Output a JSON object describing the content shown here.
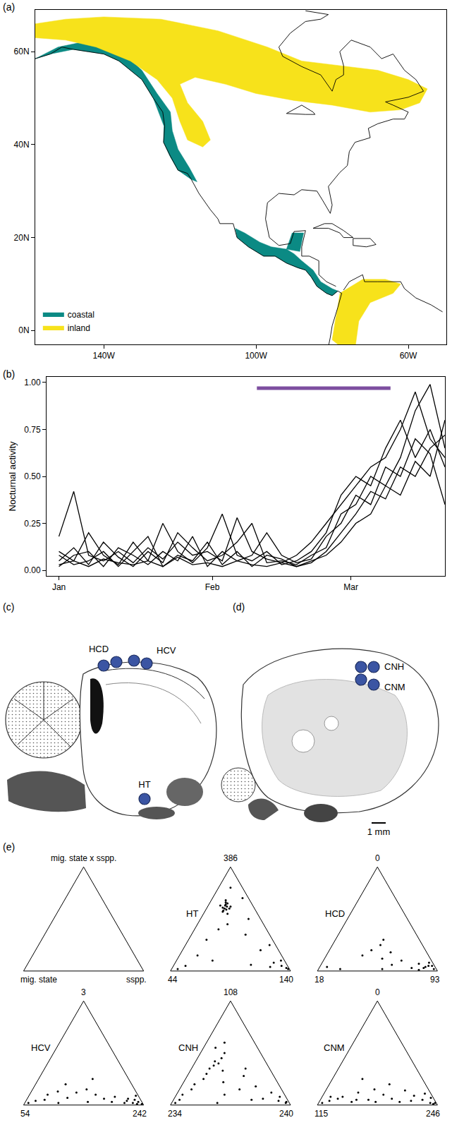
{
  "panel_labels": [
    "(a)",
    "(b)",
    "(c)",
    "(d)",
    "(e)"
  ],
  "chart_data": [
    {
      "type": "map",
      "series": [
        {
          "name": "coastal",
          "color": "#0b8a84",
          "lon": [
            -158,
            -152,
            -146,
            -140,
            -134,
            -130,
            -126,
            -122.5,
            -122,
            -120.5,
            -117.5,
            -115.5,
            -117,
            -120.5,
            -122.6,
            -124.3,
            -124.2,
            -127,
            -130,
            -133,
            -136,
            -140,
            -148,
            -154,
            -158,
            null,
            -105,
            -102,
            -98,
            -95,
            -92,
            -89,
            -87,
            -85.5,
            -84,
            -81.5,
            -80,
            -78.5,
            -80,
            -83,
            -85,
            -88,
            -90,
            -92,
            -96,
            -99,
            -103,
            -105.5,
            null,
            -92,
            -88.5,
            -87.5,
            -90.5,
            -92
          ],
          "lat": [
            58.5,
            61,
            62,
            61.3,
            59,
            56,
            51,
            47,
            43,
            39,
            35,
            32,
            32.5,
            34.5,
            37.5,
            40.5,
            44,
            50,
            54,
            56,
            58,
            59.5,
            60.5,
            59.5,
            58.5,
            null,
            20,
            18,
            16,
            16,
            14.5,
            13.5,
            13,
            11.5,
            9.5,
            8,
            7.5,
            8.5,
            9,
            10.5,
            13,
            15,
            16.5,
            17.5,
            18,
            19,
            21,
            22,
            null,
            17.5,
            17,
            21,
            21,
            17.5
          ]
        },
        {
          "name": "inland",
          "color": "#f7e21b",
          "lon": [
            -158,
            -150,
            -140,
            -125,
            -110,
            -97,
            -88,
            -78,
            -68,
            -60,
            -55,
            -57,
            -62,
            -70,
            -80,
            -90,
            -100,
            -108,
            -116,
            -120,
            -118,
            -114,
            -112,
            -114,
            -118,
            -120,
            -122,
            -126,
            -133,
            -142,
            -150,
            -158,
            null,
            -78,
            -72,
            -66,
            -62,
            -64,
            -70,
            -73,
            -74,
            -77,
            -80,
            -79
          ],
          "lat": [
            66,
            67,
            67.5,
            67,
            64.5,
            61,
            58,
            57,
            56,
            54,
            52,
            49,
            47.5,
            47,
            48.5,
            49.5,
            51,
            53,
            54.5,
            53,
            49,
            45,
            41,
            39.5,
            41,
            45,
            50,
            54,
            58,
            61,
            62.5,
            63,
            null,
            8,
            11,
            11,
            10,
            8,
            6,
            2,
            -4,
            -4,
            -2,
            3
          ]
        }
      ],
      "coastline": {
        "color": "#000000",
        "lon": [
          -158,
          -154,
          -151,
          -148,
          -144,
          -140,
          -136,
          -133,
          -130,
          -127,
          -124.5,
          -124,
          -124.3,
          -122.5,
          -120.5,
          -118,
          -117,
          -115,
          -112,
          -110,
          -109.5,
          -106,
          -105,
          -102,
          -98,
          -95,
          -92,
          -89,
          -87,
          -85.5,
          -84,
          -81.5,
          -80,
          -78.5,
          -77.5,
          -78.5,
          -80,
          -80.5,
          -81,
          null,
          -77,
          -75.5,
          -72,
          -71.5,
          -68,
          -62,
          -61,
          -58,
          -54,
          -51,
          null,
          -79,
          -81.5,
          -83.5,
          -83.5,
          -86,
          -88,
          -88,
          -87,
          -90,
          -91,
          -94,
          -96.5,
          -97.5,
          -97,
          -94,
          -90,
          -88,
          -84,
          -82.5,
          -81,
          -80.5,
          -80,
          -81,
          -78,
          -76,
          -75.5,
          -74,
          -70,
          -70.5,
          -68,
          -66,
          -64,
          -61,
          -60,
          -64,
          -66,
          -60,
          -56,
          -58,
          -61,
          -64,
          -67,
          -70,
          -75,
          -78,
          -77,
          -77,
          -79,
          -80,
          -83,
          -88,
          -93,
          -94,
          -91,
          -87,
          -83,
          -81,
          -87,
          null,
          -85,
          -82,
          -80,
          -77,
          -74.5,
          -77,
          -78,
          -81,
          -85,
          null,
          -74.5,
          -70,
          -68.5,
          -71,
          -74.5,
          -74.5,
          null,
          -92,
          -88,
          -85,
          -84.5,
          -87,
          -92
        ],
        "lat": [
          58.5,
          59.5,
          61,
          60.5,
          60,
          59.5,
          58,
          56,
          54,
          50,
          47,
          44,
          40.5,
          37.5,
          34.5,
          33.8,
          32.5,
          29.5,
          26,
          24,
          23,
          23,
          20,
          18,
          16,
          16,
          14.5,
          13.5,
          13,
          11.5,
          9.5,
          8,
          7.5,
          8.5,
          8,
          5,
          1,
          -1.5,
          -3.5,
          null,
          8.7,
          10.5,
          12,
          10.5,
          10.5,
          10.5,
          9,
          7,
          5.5,
          4,
          null,
          9.5,
          10.5,
          12,
          15,
          16,
          16,
          18,
          21.5,
          21.3,
          18.7,
          18.3,
          20,
          24,
          27.5,
          29.5,
          29.2,
          30.3,
          30,
          28,
          26,
          25.2,
          27,
          31,
          34,
          35.5,
          38.5,
          40.5,
          41.5,
          43.5,
          44.5,
          45,
          45.5,
          45.5,
          47,
          48.5,
          49.2,
          50.2,
          51.5,
          54,
          56,
          59.5,
          58.5,
          61,
          62.5,
          60,
          57,
          55,
          54,
          51.5,
          55,
          56.8,
          59,
          61,
          64,
          66.5,
          67,
          68,
          68.8,
          null,
          22,
          23,
          23,
          21.5,
          20,
          20,
          21,
          22,
          22,
          null,
          19.8,
          19.8,
          18.5,
          18,
          18.3,
          19.8,
          null,
          46.7,
          48.5,
          47,
          46.5,
          46.5,
          46.7
        ]
      },
      "xlim": [
        -158,
        -50
      ],
      "ylim": [
        -3,
        69
      ],
      "xticks": [
        {
          "value": -140,
          "label": "140W"
        },
        {
          "value": -100,
          "label": "100W"
        },
        {
          "value": -60,
          "label": "60W"
        }
      ],
      "yticks": [
        {
          "value": 0,
          "label": "0N"
        },
        {
          "value": 20,
          "label": "20N"
        },
        {
          "value": 40,
          "label": "40N"
        },
        {
          "value": 60,
          "label": "60N"
        }
      ],
      "legend": "bottom left"
    },
    {
      "type": "line",
      "ylabel": "Nocturnal activity",
      "x": [
        1,
        4,
        7,
        10,
        13,
        16,
        19,
        22,
        25,
        28,
        31,
        34,
        37,
        40,
        43,
        46,
        49,
        52,
        55,
        58,
        61,
        64,
        67,
        70,
        73,
        76,
        79
      ],
      "series": [
        {
          "color": "#000000",
          "values": [
            0.18,
            0.42,
            0.08,
            0.05,
            0.1,
            0.04,
            0.12,
            0.06,
            0.15,
            0.08,
            0.1,
            0.05,
            0.28,
            0.1,
            0.06,
            0.04,
            0.08,
            0.15,
            0.25,
            0.35,
            0.45,
            0.55,
            0.6,
            0.75,
            0.95,
            0.7,
            0.6
          ]
        },
        {
          "color": "#000000",
          "values": [
            0.1,
            0.05,
            0.2,
            0.08,
            0.03,
            0.15,
            0.05,
            0.25,
            0.1,
            0.04,
            0.12,
            0.3,
            0.08,
            0.05,
            0.1,
            0.03,
            0.05,
            0.1,
            0.2,
            0.4,
            0.5,
            0.45,
            0.65,
            0.8,
            0.6,
            0.75,
            0.55
          ]
        },
        {
          "color": "#000000",
          "values": [
            0.05,
            0.12,
            0.03,
            0.15,
            0.07,
            0.02,
            0.1,
            0.04,
            0.2,
            0.12,
            0.05,
            0.08,
            0.15,
            0.25,
            0.04,
            0.05,
            0.03,
            0.08,
            0.12,
            0.3,
            0.35,
            0.5,
            0.45,
            0.6,
            0.85,
            0.99,
            0.65
          ]
        },
        {
          "color": "#000000",
          "values": [
            0.02,
            0.08,
            0.1,
            0.02,
            0.12,
            0.08,
            0.03,
            0.1,
            0.05,
            0.18,
            0.02,
            0.1,
            0.05,
            0.08,
            0.2,
            0.08,
            0.04,
            0.06,
            0.18,
            0.25,
            0.4,
            0.35,
            0.55,
            0.5,
            0.7,
            0.62,
            0.35
          ]
        },
        {
          "color": "#000000",
          "values": [
            0.08,
            0.03,
            0.05,
            0.1,
            0.02,
            0.1,
            0.18,
            0.02,
            0.08,
            0.05,
            0.15,
            0.03,
            0.1,
            0.02,
            0.08,
            0.06,
            0.02,
            0.04,
            0.1,
            0.2,
            0.3,
            0.42,
            0.38,
            0.55,
            0.5,
            0.65,
            0.72
          ]
        },
        {
          "color": "#000000",
          "values": [
            0.03,
            0.05,
            0.02,
            0.06,
            0.04,
            0.03,
            0.05,
            0.02,
            0.07,
            0.03,
            0.04,
            0.02,
            0.05,
            0.03,
            0.02,
            0.04,
            0.02,
            0.05,
            0.08,
            0.15,
            0.25,
            0.3,
            0.45,
            0.4,
            0.58,
            0.5,
            0.8
          ]
        }
      ],
      "period_bar": {
        "x0": 41,
        "x1": 68,
        "y": 0.97,
        "color": "#7d4e9f"
      },
      "xlim": [
        -1.5,
        79
      ],
      "ylim": [
        -0.03,
        1.03
      ],
      "xticks": [
        {
          "value": 1,
          "label": "Jan"
        },
        {
          "value": 32,
          "label": "Feb"
        },
        {
          "value": 60,
          "label": "Mar"
        }
      ],
      "yticks": [
        {
          "value": 0,
          "label": "0.00"
        },
        {
          "value": 0.25,
          "label": "0.25"
        },
        {
          "value": 0.5,
          "label": "0.50"
        },
        {
          "value": 0.75,
          "label": "0.75"
        },
        {
          "value": 1,
          "label": "1.00"
        }
      ]
    },
    {
      "type": "ternary",
      "marker": "circle",
      "color": "#000000",
      "panels": [
        {
          "corner_labels": {
            "top": "mig. state x sspp.",
            "left": "mig. state",
            "right": "sspp."
          }
        },
        {
          "name": "HT",
          "corner_labels": {
            "top": 386,
            "left": 44,
            "right": 140
          },
          "a": [
            0.62,
            0.6,
            0.65,
            0.58,
            0.63,
            0.61,
            0.66,
            0.59,
            0.64,
            0.57,
            0.62,
            0.68,
            0.55,
            0.6,
            0.63,
            0.45,
            0.35,
            0.8,
            0.3,
            0.2,
            0.4,
            0.5,
            0.05,
            0.03,
            0.08,
            0.02,
            0.1,
            0.04,
            0.06,
            0.02,
            0.05,
            0.15,
            0.25,
            0.1,
            0.7
          ],
          "b": [
            0.22,
            0.25,
            0.2,
            0.27,
            0.23,
            0.26,
            0.21,
            0.24,
            0.22,
            0.28,
            0.19,
            0.2,
            0.25,
            0.21,
            0.27,
            0.3,
            0.2,
            0.1,
            0.55,
            0.15,
            0.4,
            0.1,
            0.05,
            0.02,
            0.1,
            0.01,
            0.03,
            0.15,
            0.3,
            0.93,
            0.85,
            0.7,
            0.05,
            0.6,
            0.05
          ]
        },
        {
          "name": "HCD",
          "corner_labels": {
            "top": 0,
            "left": 18,
            "right": 93
          },
          "a": [
            0.02,
            0.05,
            0.03,
            0.08,
            0.01,
            0.04,
            0.1,
            0.06,
            0.02,
            0.12,
            0.2,
            0.15,
            0.25,
            0.05,
            0.03,
            0.07,
            0.18,
            0.3,
            0.02,
            0.04
          ],
          "b": [
            0.02,
            0.05,
            0.1,
            0.03,
            0.15,
            0.08,
            0.25,
            0.35,
            0.45,
            0.4,
            0.45,
            0.55,
            0.35,
            0.02,
            0.2,
            0.12,
            0.3,
            0.3,
            0.8,
            0.9
          ]
        },
        {
          "name": "HCV",
          "corner_labels": {
            "top": 3,
            "left": 54,
            "right": 242
          },
          "a": [
            0.01,
            0.03,
            0.02,
            0.05,
            0.02,
            0.04,
            0.08,
            0.06,
            0.1,
            0.03,
            0.12,
            0.15,
            0.07,
            0.2,
            0.02,
            0.05,
            0.1,
            0.04,
            0.02,
            0.09,
            0.25,
            0.03,
            0.01,
            0.06,
            0.13
          ],
          "b": [
            0.01,
            0.03,
            0.08,
            0.05,
            0.15,
            0.12,
            0.2,
            0.3,
            0.35,
            0.45,
            0.5,
            0.4,
            0.6,
            0.55,
            0.7,
            0.8,
            0.75,
            0.88,
            0.95,
            0.02,
            0.3,
            0.25,
            0.05,
            0.1,
            0.65
          ]
        },
        {
          "name": "CNH",
          "corner_labels": {
            "top": 108,
            "left": 234,
            "right": 240
          },
          "a": [
            0.4,
            0.45,
            0.35,
            0.5,
            0.38,
            0.42,
            0.3,
            0.25,
            0.55,
            0.33,
            0.2,
            0.15,
            0.1,
            0.05,
            0.02,
            0.08,
            0.03,
            0.12,
            0.06,
            0.02,
            0.04,
            0.18,
            0.28,
            0.6,
            0.22,
            0.1,
            0.05,
            0.35,
            0.15,
            0.02
          ],
          "b": [
            0.4,
            0.35,
            0.5,
            0.3,
            0.45,
            0.42,
            0.55,
            0.6,
            0.35,
            0.4,
            0.7,
            0.75,
            0.85,
            0.9,
            0.95,
            0.05,
            0.02,
            0.1,
            0.2,
            0.03,
            0.08,
            0.2,
            0.25,
            0.25,
            0.45,
            0.5,
            0.3,
            0.2,
            0.35,
            0.6
          ]
        },
        {
          "name": "CNM",
          "corner_labels": {
            "top": 0,
            "left": 115,
            "right": 246
          },
          "a": [
            0.02,
            0.04,
            0.06,
            0.03,
            0.08,
            0.12,
            0.05,
            0.1,
            0.15,
            0.03,
            0.02,
            0.07,
            0.2,
            0.05,
            0.09,
            0.02,
            0.04,
            0.11,
            0.06,
            0.03,
            0.14,
            0.08,
            0.25,
            0.01,
            0.05
          ],
          "b": [
            0.95,
            0.88,
            0.8,
            0.7,
            0.75,
            0.6,
            0.55,
            0.4,
            0.45,
            0.3,
            0.05,
            0.02,
            0.3,
            0.1,
            0.15,
            0.01,
            0.2,
            0.05,
            0.35,
            0.5,
            0.2,
            0.85,
            0.5,
            0.03,
            0.65
          ]
        }
      ]
    }
  ],
  "diagrams": {
    "color": "#3b55a3",
    "c": {
      "labels": [
        "HCD",
        "HCV",
        "HT"
      ]
    },
    "d": {
      "labels": [
        "CNH",
        "CNM"
      ],
      "scale_bar": "1 mm"
    }
  }
}
